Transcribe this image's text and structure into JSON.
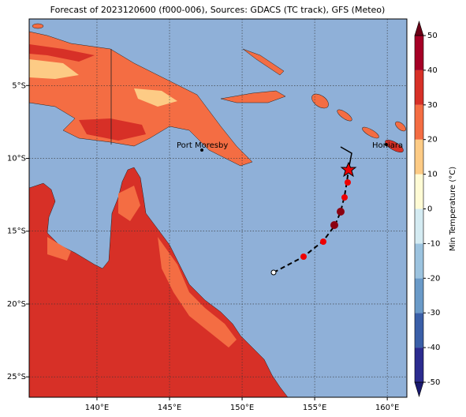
{
  "map": {
    "title": "Forecast of 2023120600 (f000-006), Sources: GDACS (TC track), GFS (Meteo)",
    "lonlim": [
      135.33,
      161.35
    ],
    "latlim": [
      -26.4,
      -0.43
    ],
    "lon_ticks": [
      {
        "value": 140,
        "label": "140°E"
      },
      {
        "value": 145,
        "label": "145°E"
      },
      {
        "value": 150,
        "label": "150°E"
      },
      {
        "value": 155,
        "label": "155°E"
      },
      {
        "value": 160,
        "label": "160°E"
      }
    ],
    "lat_ticks": [
      {
        "value": -5,
        "label": "5°S"
      },
      {
        "value": -10,
        "label": "10°S"
      },
      {
        "value": -15,
        "label": "15°S"
      },
      {
        "value": -20,
        "label": "20°S"
      },
      {
        "value": -25,
        "label": "25°S"
      }
    ],
    "grid": true,
    "cities": [
      {
        "name": "Port Moresby"
      },
      {
        "name": "Honiara"
      }
    ],
    "colorbar": {
      "label": "Min Temperature (°C)",
      "lim": [
        -50,
        50
      ],
      "ticks": [
        -50,
        -40,
        -30,
        -20,
        -10,
        0,
        10,
        20,
        30,
        40,
        50
      ],
      "colors": [
        "#2b2b8f",
        "#3a5fa8",
        "#6a9ac8",
        "#9cc3df",
        "#d4ebf2",
        "#fffbd5",
        "#fdcb85",
        "#f46d43",
        "#d73027",
        "#a50026"
      ],
      "under_color": "#1a1a70",
      "over_color": "#6b0016"
    }
  }
}
